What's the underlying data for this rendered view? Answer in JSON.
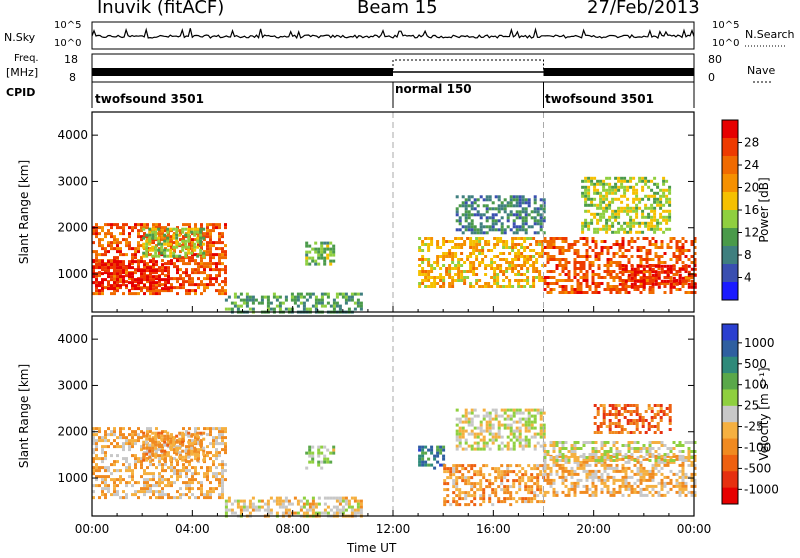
{
  "header": {
    "station": "Inuvik (fitACF)",
    "beam": "Beam 15",
    "date": "27/Feb/2013"
  },
  "top_panels": {
    "nsky_label": "N.Sky",
    "nsky_ticks": [
      "10^5",
      "10^0"
    ],
    "nsearch_label": "N.Search",
    "freq_label_line1": "Freq.",
    "freq_label_line2": "[MHz]",
    "freq_ticks": [
      "18",
      "8"
    ],
    "nave_label": "Nave",
    "nave_ticks": [
      "80",
      "0"
    ],
    "cpid_label": "CPID",
    "cpid_segments": [
      {
        "label": "twofsound 3501",
        "start_hour": 0,
        "end_hour": 12
      },
      {
        "label": "normal 150",
        "start_hour": 12,
        "end_hour": 18
      },
      {
        "label": "twofsound 3501",
        "start_hour": 18,
        "end_hour": 24
      }
    ]
  },
  "axes": {
    "xlabel": "Time UT",
    "ylabel": "Slant Range [km]",
    "xticks": [
      "00:00",
      "04:00",
      "08:00",
      "12:00",
      "16:00",
      "20:00",
      "00:00"
    ],
    "yticks": [
      "1000",
      "2000",
      "3000",
      "4000"
    ]
  },
  "colorbars": {
    "power": {
      "label": "Power [dB]",
      "ticks": [
        "4",
        "8",
        "12",
        "16",
        "20",
        "24",
        "28"
      ],
      "colors": [
        "#1a1aff",
        "#3a4fb0",
        "#3f7f7f",
        "#4a9a4a",
        "#8fcf3f",
        "#f5c000",
        "#f59000",
        "#f06a00",
        "#ee3a00",
        "#e60000"
      ]
    },
    "velocity": {
      "label": "Velocity [m s⁻¹]",
      "ticks": [
        "1000",
        "500",
        "100",
        "25",
        "-25",
        "-100",
        "-500",
        "-1000"
      ],
      "colors": [
        "#2a3fd0",
        "#2f5fa0",
        "#2f8a7a",
        "#5aa84a",
        "#8fd03f",
        "#c8c8c8",
        "#f5b040",
        "#f08a20",
        "#ee6010",
        "#e63010",
        "#e60000"
      ]
    }
  },
  "chart_data": [
    {
      "type": "heatmap",
      "title": "Power",
      "xlabel": "Time UT",
      "ylabel": "Slant Range [km]",
      "xlim_hours": [
        0,
        24
      ],
      "ylim_km": [
        180,
        4500
      ],
      "colorbar": "Power [dB]",
      "clim": [
        0,
        30
      ],
      "regions": [
        {
          "t": [
            0.0,
            5.3
          ],
          "r": [
            600,
            2100
          ],
          "value": 24
        },
        {
          "t": [
            0.0,
            3.0
          ],
          "r": [
            700,
            1300
          ],
          "value": 28
        },
        {
          "t": [
            2.0,
            4.5
          ],
          "r": [
            1400,
            2000
          ],
          "value": 14
        },
        {
          "t": [
            5.3,
            10.8
          ],
          "r": [
            200,
            600
          ],
          "value": 10
        },
        {
          "t": [
            8.5,
            9.6
          ],
          "r": [
            1200,
            1700
          ],
          "value": 12
        },
        {
          "t": [
            13.0,
            18.0
          ],
          "r": [
            700,
            1800
          ],
          "value": 18
        },
        {
          "t": [
            14.5,
            18.0
          ],
          "r": [
            1900,
            2700
          ],
          "value": 8
        },
        {
          "t": [
            18.0,
            24.0
          ],
          "r": [
            600,
            1800
          ],
          "value": 24
        },
        {
          "t": [
            21.0,
            24.0
          ],
          "r": [
            700,
            1200
          ],
          "value": 28
        },
        {
          "t": [
            19.5,
            23.0
          ],
          "r": [
            1900,
            3100
          ],
          "value": 14
        }
      ]
    },
    {
      "type": "heatmap",
      "title": "Velocity",
      "xlabel": "Time UT",
      "ylabel": "Slant Range [km]",
      "xlim_hours": [
        0,
        24
      ],
      "ylim_km": [
        180,
        4500
      ],
      "colorbar": "Velocity [m s⁻¹]",
      "clim": [
        -1000,
        1000
      ],
      "regions": [
        {
          "t": [
            0.0,
            5.3
          ],
          "r": [
            600,
            2100
          ],
          "value": -200
        },
        {
          "t": [
            2.0,
            4.5
          ],
          "r": [
            1400,
            2000
          ],
          "value": -300
        },
        {
          "t": [
            5.3,
            10.8
          ],
          "r": [
            200,
            600
          ],
          "value": -80
        },
        {
          "t": [
            8.5,
            9.6
          ],
          "r": [
            1200,
            1700
          ],
          "value": 100
        },
        {
          "t": [
            13.0,
            14.0
          ],
          "r": [
            1200,
            1700
          ],
          "value": 600
        },
        {
          "t": [
            14.0,
            18.0
          ],
          "r": [
            400,
            1300
          ],
          "value": -300
        },
        {
          "t": [
            14.5,
            18.0
          ],
          "r": [
            1600,
            2500
          ],
          "value": 0
        },
        {
          "t": [
            18.0,
            24.0
          ],
          "r": [
            600,
            1500
          ],
          "value": -200
        },
        {
          "t": [
            18.0,
            24.0
          ],
          "r": [
            1400,
            1800
          ],
          "value": 0
        },
        {
          "t": [
            20.0,
            23.0
          ],
          "r": [
            2000,
            2600
          ],
          "value": -500
        }
      ]
    }
  ]
}
